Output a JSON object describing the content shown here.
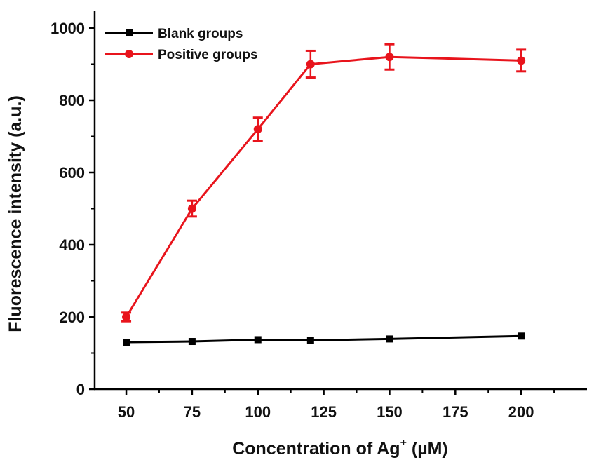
{
  "chart_data": {
    "type": "line",
    "title": "",
    "xlabel": "Concentration of Ag",
    "xlabel_superscript": "+",
    "xlabel_unit": " (µM)",
    "ylabel": "Fluorescence intensity (a.u.)",
    "xlim": [
      38,
      225
    ],
    "ylim": [
      0,
      1000
    ],
    "x_major_ticks": [
      50,
      75,
      100,
      125,
      150,
      175,
      200
    ],
    "x_minor_ticks": [
      62.5,
      87.5,
      112.5,
      137.5,
      162.5,
      187.5,
      212.5
    ],
    "y_major_ticks": [
      0,
      200,
      400,
      600,
      800,
      1000
    ],
    "y_minor_ticks": [
      100,
      300,
      500,
      700,
      900
    ],
    "grid": false,
    "legend_position": "top-left",
    "series": [
      {
        "name": "Blank groups",
        "color": "#000000",
        "marker": "square",
        "x": [
          50,
          75,
          100,
          120,
          150,
          200
        ],
        "y": [
          130,
          132,
          137,
          135,
          139,
          147
        ],
        "error": [
          0,
          0,
          0,
          0,
          0,
          0
        ]
      },
      {
        "name": "Positive groups",
        "color": "#e8141c",
        "marker": "circle",
        "x": [
          50,
          75,
          100,
          120,
          150,
          200
        ],
        "y": [
          200,
          500,
          720,
          900,
          920,
          910
        ],
        "error": [
          12,
          22,
          32,
          37,
          35,
          30
        ]
      }
    ]
  }
}
